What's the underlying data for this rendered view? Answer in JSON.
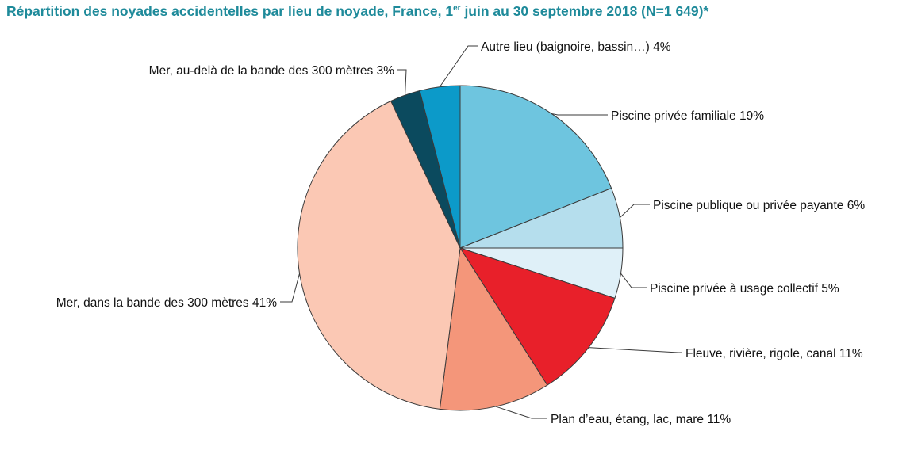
{
  "chart_data": {
    "type": "pie",
    "title": {
      "before": "Répartition des noyades accidentelles par lieu de noyade, France, 1",
      "sup": "er",
      "after": " juin au 30 septembre 2018 (N=1 649)*"
    },
    "slices": [
      {
        "label": "Piscine privée familiale 19%",
        "value": 19,
        "color": "#6ec5df"
      },
      {
        "label": "Piscine publique ou privée payante 6%",
        "value": 6,
        "color": "#b5deed"
      },
      {
        "label": "Piscine privée à usage collectif 5%",
        "value": 5,
        "color": "#dff0f8"
      },
      {
        "label": "Fleuve, rivière, rigole, canal 11%",
        "value": 11,
        "color": "#e8202a"
      },
      {
        "label": "Plan d’eau, étang, lac, mare 11%",
        "value": 11,
        "color": "#f4967a"
      },
      {
        "label": "Mer, dans la bande des 300 mètres 41%",
        "value": 41,
        "color": "#fbc8b4"
      },
      {
        "label": "Mer, au-delà de la bande des 300 mètres 3%",
        "value": 3,
        "color": "#0b4a5e"
      },
      {
        "label": "Autre lieu (baignoire, bassin…) 4%",
        "value": 4,
        "color": "#0c9ac9"
      }
    ]
  }
}
